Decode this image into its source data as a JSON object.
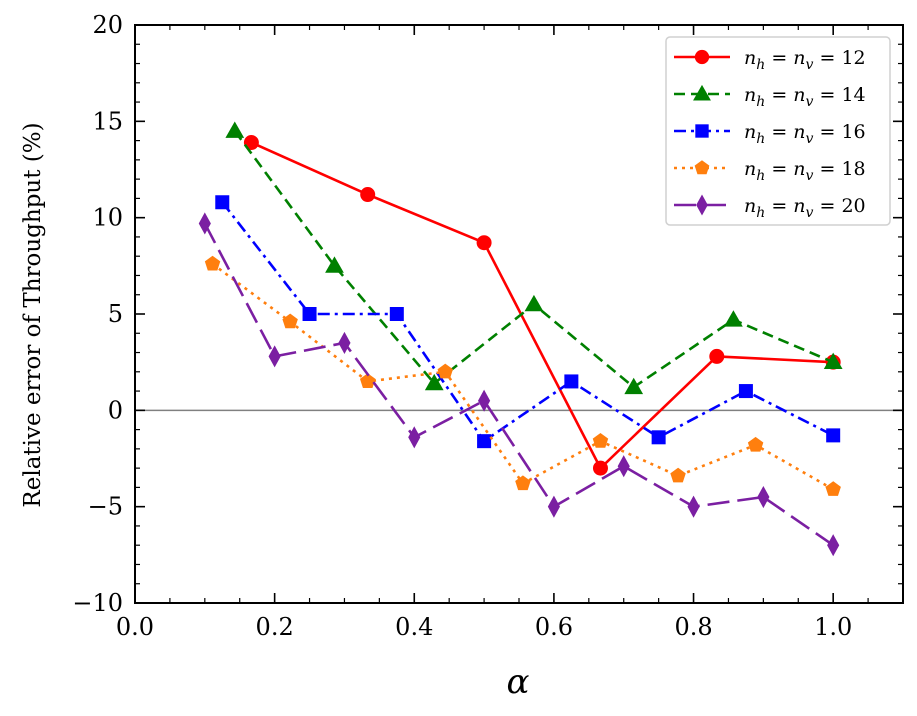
{
  "chart_data": {
    "type": "line",
    "title": "",
    "xlabel": "α",
    "ylabel": "Relative error of Throughput (%)",
    "xlim": [
      0.0,
      1.1
    ],
    "ylim": [
      -10,
      20
    ],
    "x_ticks": [
      0.0,
      0.2,
      0.4,
      0.6,
      0.8,
      1.0
    ],
    "x_tick_labels": [
      "0.0",
      "0.2",
      "0.4",
      "0.6",
      "0.8",
      "1.0"
    ],
    "y_ticks": [
      -10,
      -5,
      0,
      5,
      10,
      15,
      20
    ],
    "y_tick_labels": [
      "−10",
      "−5",
      "0",
      "5",
      "10",
      "15",
      "20"
    ],
    "grid": false,
    "reference_line": 0,
    "legend_position": "top-right",
    "series": [
      {
        "name": "n_h = n_v = 12",
        "legend_label": "n",
        "label_h": "h",
        "label_v": "v",
        "label_num": "= 12",
        "color": "#ff0000",
        "marker": "circle",
        "dash": "solid",
        "x": [
          0.1667,
          0.3333,
          0.5,
          0.6667,
          0.8333,
          1.0
        ],
        "y": [
          13.9,
          11.2,
          8.7,
          -3.0,
          2.8,
          2.5
        ]
      },
      {
        "name": "n_h = n_v = 14",
        "legend_label": "n",
        "label_h": "h",
        "label_v": "v",
        "label_num": "= 14",
        "color": "#008000",
        "marker": "triangle",
        "dash": "dashed",
        "x": [
          0.1429,
          0.2857,
          0.4286,
          0.5714,
          0.7143,
          0.8571,
          1.0
        ],
        "y": [
          14.5,
          7.5,
          1.4,
          5.5,
          1.2,
          4.7,
          2.5
        ]
      },
      {
        "name": "n_h = n_v = 16",
        "legend_label": "n",
        "label_h": "h",
        "label_v": "v",
        "label_num": "= 16",
        "color": "#0000ff",
        "marker": "square",
        "dash": "dashdot",
        "x": [
          0.125,
          0.25,
          0.375,
          0.5,
          0.625,
          0.75,
          0.875,
          1.0
        ],
        "y": [
          10.8,
          5.0,
          5.0,
          -1.6,
          1.5,
          -1.4,
          1.0,
          -1.3
        ]
      },
      {
        "name": "n_h = n_v = 18",
        "legend_label": "n",
        "label_h": "h",
        "label_v": "v",
        "label_num": "= 18",
        "color": "#ff7f0e",
        "marker": "pentagon",
        "dash": "dotted",
        "x": [
          0.1111,
          0.2222,
          0.3333,
          0.4444,
          0.5556,
          0.6667,
          0.7778,
          0.8889,
          1.0
        ],
        "y": [
          7.6,
          4.6,
          1.5,
          2.0,
          -3.8,
          -1.6,
          -3.4,
          -1.8,
          -4.1
        ]
      },
      {
        "name": "n_h = n_v = 20",
        "legend_label": "n",
        "label_h": "h",
        "label_v": "v",
        "label_num": "= 20",
        "color": "#7b1fa2",
        "marker": "thin_diamond",
        "dash": "longdash",
        "x": [
          0.1,
          0.2,
          0.3,
          0.4,
          0.5,
          0.6,
          0.7,
          0.8,
          0.9,
          1.0
        ],
        "y": [
          9.7,
          2.8,
          3.5,
          -1.4,
          0.5,
          -5.0,
          -2.9,
          -5.0,
          -4.5,
          -7.0
        ]
      }
    ]
  }
}
